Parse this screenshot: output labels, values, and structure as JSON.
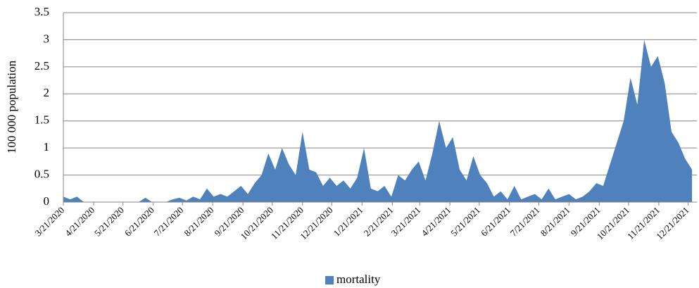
{
  "chart_data": {
    "type": "area",
    "y_label": "100 000 population",
    "x": [
      "3/21/2020",
      "3/28/2020",
      "4/4/2020",
      "4/11/2020",
      "4/18/2020",
      "4/25/2020",
      "5/2/2020",
      "5/9/2020",
      "5/16/2020",
      "5/23/2020",
      "5/30/2020",
      "6/6/2020",
      "6/13/2020",
      "6/20/2020",
      "6/27/2020",
      "7/4/2020",
      "7/11/2020",
      "7/18/2020",
      "7/25/2020",
      "8/1/2020",
      "8/8/2020",
      "8/15/2020",
      "8/22/2020",
      "8/29/2020",
      "9/5/2020",
      "9/12/2020",
      "9/19/2020",
      "9/26/2020",
      "10/3/2020",
      "10/10/2020",
      "10/17/2020",
      "10/24/2020",
      "10/31/2020",
      "11/7/2020",
      "11/14/2020",
      "11/21/2020",
      "11/28/2020",
      "12/5/2020",
      "12/12/2020",
      "12/19/2020",
      "12/26/2020",
      "1/2/2021",
      "1/9/2021",
      "1/16/2021",
      "1/23/2021",
      "1/30/2021",
      "2/6/2021",
      "2/13/2021",
      "2/20/2021",
      "2/27/2021",
      "3/6/2021",
      "3/13/2021",
      "3/20/2021",
      "3/27/2021",
      "4/3/2021",
      "4/10/2021",
      "4/17/2021",
      "4/24/2021",
      "5/1/2021",
      "5/8/2021",
      "5/15/2021",
      "5/22/2021",
      "5/29/2021",
      "6/5/2021",
      "6/12/2021",
      "6/19/2021",
      "6/26/2021",
      "7/3/2021",
      "7/10/2021",
      "7/17/2021",
      "7/24/2021",
      "7/31/2021",
      "8/7/2021",
      "8/14/2021",
      "8/21/2021",
      "8/28/2021",
      "9/4/2021",
      "9/11/2021",
      "9/18/2021",
      "9/25/2021",
      "10/2/2021",
      "10/9/2021",
      "10/16/2021",
      "10/23/2021",
      "10/30/2021",
      "11/6/2021",
      "11/13/2021",
      "11/20/2021",
      "11/27/2021",
      "12/4/2021",
      "12/11/2021",
      "12/18/2021",
      "12/25/2021"
    ],
    "series": [
      {
        "name": "mortality",
        "color": "#4f81bd",
        "values": [
          0.1,
          0.05,
          0.1,
          0,
          0,
          0,
          0,
          0,
          0,
          0,
          0,
          0,
          0.08,
          0,
          0,
          0,
          0.05,
          0.08,
          0.03,
          0.1,
          0.05,
          0.25,
          0.1,
          0.15,
          0.1,
          0.2,
          0.3,
          0.15,
          0.35,
          0.5,
          0.9,
          0.6,
          1.0,
          0.7,
          0.5,
          1.3,
          0.6,
          0.55,
          0.3,
          0.45,
          0.3,
          0.4,
          0.25,
          0.45,
          1.0,
          0.25,
          0.2,
          0.3,
          0.1,
          0.5,
          0.4,
          0.6,
          0.75,
          0.4,
          0.9,
          1.5,
          1.0,
          1.2,
          0.6,
          0.4,
          0.85,
          0.5,
          0.35,
          0.1,
          0.2,
          0.05,
          0.3,
          0.05,
          0.1,
          0.15,
          0.05,
          0.25,
          0.05,
          0.1,
          0.15,
          0.05,
          0.1,
          0.2,
          0.35,
          0.3,
          0.7,
          1.1,
          1.5,
          2.3,
          1.8,
          3.0,
          2.5,
          2.7,
          2.2,
          1.3,
          1.1,
          0.8,
          0.6
        ]
      }
    ],
    "xlim": [
      "3/21/2020",
      "12/30/2021"
    ],
    "xticks": [
      "3/21/2020",
      "4/21/2020",
      "5/21/2020",
      "6/21/2020",
      "7/21/2020",
      "8/21/2020",
      "9/21/2020",
      "10/21/2020",
      "11/21/2020",
      "12/21/2020",
      "1/21/2021",
      "2/21/2021",
      "3/21/2021",
      "4/21/2021",
      "5/21/2021",
      "6/21/2021",
      "7/21/2021",
      "8/21/2021",
      "9/21/2021",
      "10/21/2021",
      "11/21/2021",
      "12/21/2021"
    ],
    "ylim": [
      0,
      3.5
    ],
    "yticks": [
      0,
      0.5,
      1,
      1.5,
      2,
      2.5,
      3,
      3.5
    ],
    "grid": true,
    "legend": "bottom"
  }
}
